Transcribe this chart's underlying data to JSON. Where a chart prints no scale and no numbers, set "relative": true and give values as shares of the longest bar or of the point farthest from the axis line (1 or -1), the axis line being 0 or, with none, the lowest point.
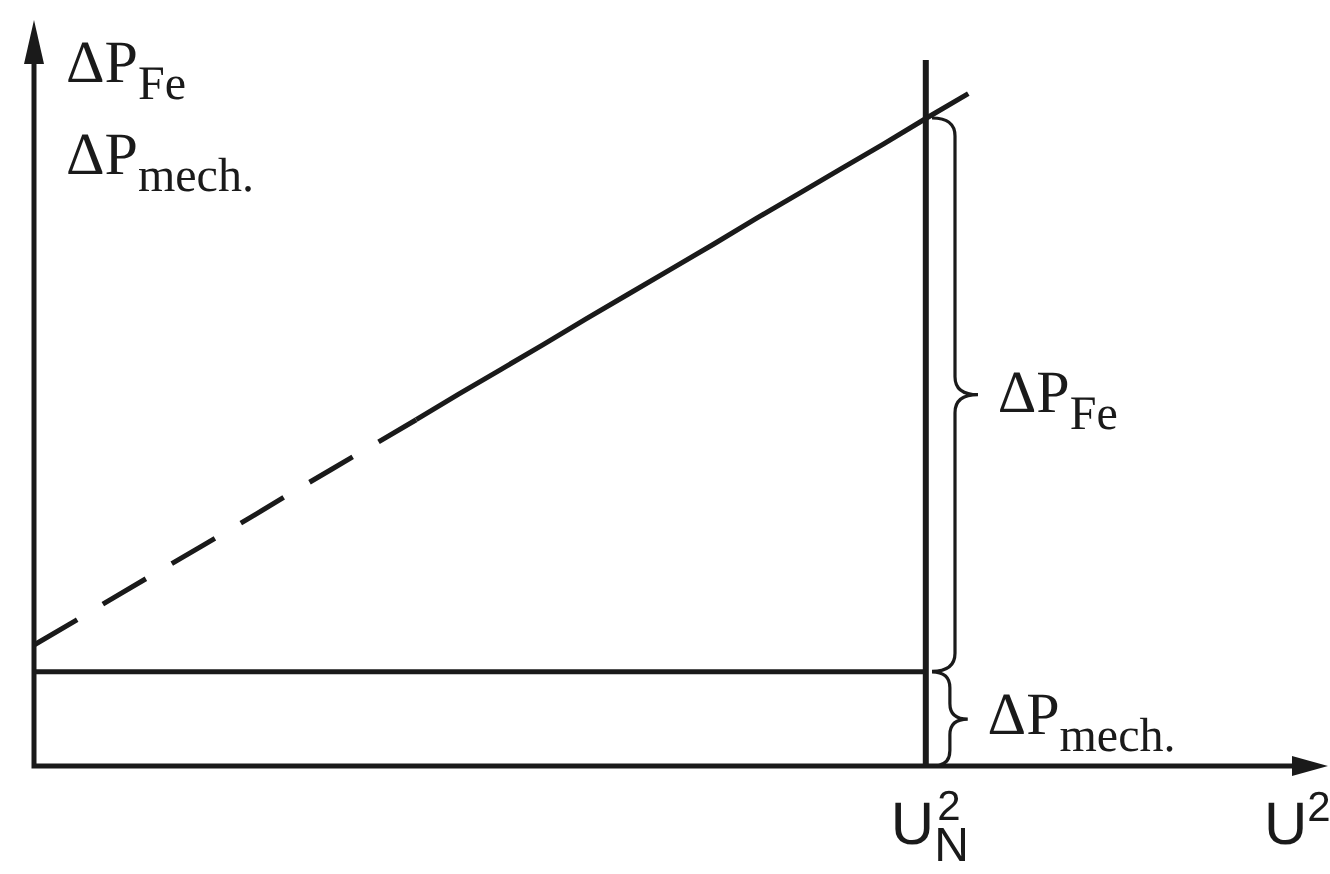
{
  "chart_data": {
    "type": "line",
    "relative": true,
    "xlabel": "U$^{2}$",
    "ylabel": "ΔP$_{Fe}$\nΔP$_{mech.}$",
    "categories": [
      null,
      null,
      null,
      null,
      null,
      null,
      null,
      null,
      null,
      null,
      null,
      null,
      null,
      null,
      null,
      null,
      null,
      null,
      null,
      null,
      null,
      null,
      null,
      null,
      null,
      null,
      null,
      null,
      null,
      null,
      null
    ],
    "series": [
      {
        "values": [
          0.18,
          0.217,
          0.255,
          0.292,
          0.329,
          0.366,
          0.404,
          0.441,
          0.478,
          0.515,
          null,
          null,
          null,
          null,
          null,
          null,
          null,
          null,
          null,
          null,
          null,
          null,
          null,
          null,
          null,
          null,
          null,
          null,
          null,
          null,
          null
        ],
        "color": "#1a1a1a",
        "line_style": "dashed"
      },
      {
        "values": [
          null,
          null,
          null,
          null,
          null,
          null,
          null,
          null,
          null,
          0.515,
          0.553,
          0.59,
          0.627,
          0.665,
          0.702,
          0.739,
          0.776,
          0.814,
          0.851,
          0.888,
          0.925,
          0.963,
          1,
          null,
          null,
          null,
          null,
          null,
          null,
          null,
          null
        ],
        "color": "#1a1a1a"
      },
      {
        "values": [
          0.14,
          0.14,
          0.14,
          0.14,
          0.14,
          0.14,
          0.14,
          0.14,
          0.14,
          0.14,
          0.14,
          0.14,
          0.14,
          0.14,
          0.14,
          0.14,
          0.14,
          0.14,
          0.14,
          0.14,
          0.14,
          0.14,
          null,
          null,
          null,
          null,
          null,
          null,
          null,
          null,
          null
        ],
        "color": "#1a1a1a"
      }
    ],
    "annotations": [
      "ΔP$_{Fe}$",
      "ΔP$_{mech.}$",
      "U$_{N}$$^{2}$"
    ]
  }
}
